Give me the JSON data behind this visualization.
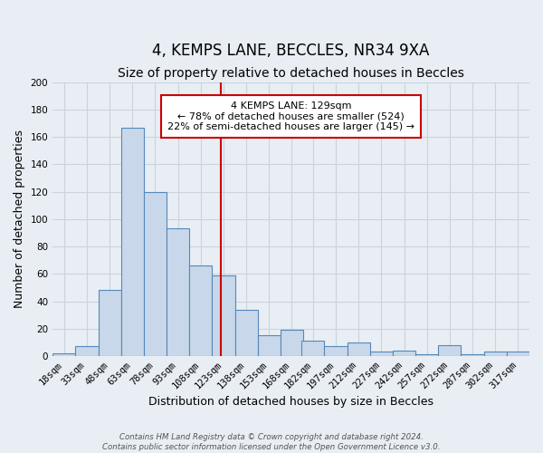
{
  "title": "4, KEMPS LANE, BECCLES, NR34 9XA",
  "subtitle": "Size of property relative to detached houses in Beccles",
  "xlabel": "Distribution of detached houses by size in Beccles",
  "ylabel": "Number of detached properties",
  "bin_labels": [
    "18sqm",
    "33sqm",
    "48sqm",
    "63sqm",
    "78sqm",
    "93sqm",
    "108sqm",
    "123sqm",
    "138sqm",
    "153sqm",
    "168sqm",
    "182sqm",
    "197sqm",
    "212sqm",
    "227sqm",
    "242sqm",
    "257sqm",
    "272sqm",
    "287sqm",
    "302sqm",
    "317sqm"
  ],
  "bin_edges": [
    18,
    33,
    48,
    63,
    78,
    93,
    108,
    123,
    138,
    153,
    168,
    182,
    197,
    212,
    227,
    242,
    257,
    272,
    287,
    302,
    317
  ],
  "bin_width": 15,
  "bar_heights": [
    2,
    7,
    48,
    167,
    120,
    93,
    66,
    59,
    34,
    15,
    19,
    11,
    7,
    10,
    3,
    4,
    1,
    8,
    1,
    3,
    3
  ],
  "bar_color": "#c8d8ea",
  "bar_edge_color": "#5588bb",
  "property_size": 129,
  "vline_color": "#cc0000",
  "annotation_text": "4 KEMPS LANE: 129sqm\n← 78% of detached houses are smaller (524)\n22% of semi-detached houses are larger (145) →",
  "annotation_box_facecolor": "#ffffff",
  "annotation_box_edgecolor": "#cc0000",
  "ylim": [
    0,
    200
  ],
  "yticks": [
    0,
    20,
    40,
    60,
    80,
    100,
    120,
    140,
    160,
    180,
    200
  ],
  "background_color": "#e8eef4",
  "grid_color": "#c8d4de",
  "footer_line1": "Contains HM Land Registry data © Crown copyright and database right 2024.",
  "footer_line2": "Contains public sector information licensed under the Open Government Licence v3.0.",
  "title_fontsize": 12,
  "subtitle_fontsize": 10,
  "xlabel_fontsize": 9,
  "ylabel_fontsize": 9,
  "tick_fontsize": 7.5,
  "annotation_fontsize": 8,
  "footer_fontsize": 6.2
}
